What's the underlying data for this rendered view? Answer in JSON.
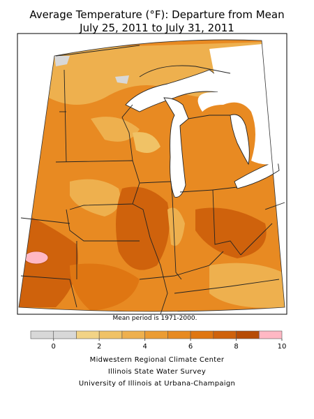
{
  "title": [
    "Average Temperature (°F): Departure from Mean",
    "July 25, 2011 to July 31, 2011"
  ],
  "note": "Mean period is 1971-2000.",
  "legend": {
    "bins": [
      -1,
      0,
      1,
      2,
      3,
      4,
      5,
      6,
      7,
      8,
      9,
      10
    ],
    "colors": [
      "#d8d8d8",
      "#d8d8d8",
      "#f2d386",
      "#f0c266",
      "#eeb04e",
      "#eb9c34",
      "#e78a22",
      "#df7612",
      "#cf620c",
      "#b64c06",
      "#ffb8c4"
    ],
    "ticks": [
      0,
      2,
      4,
      6,
      8,
      10
    ]
  },
  "credits": [
    "Midwestern Regional Climate Center",
    "Illinois State Water Survey",
    "University of Illinois at Urbana-Champaign"
  ]
}
